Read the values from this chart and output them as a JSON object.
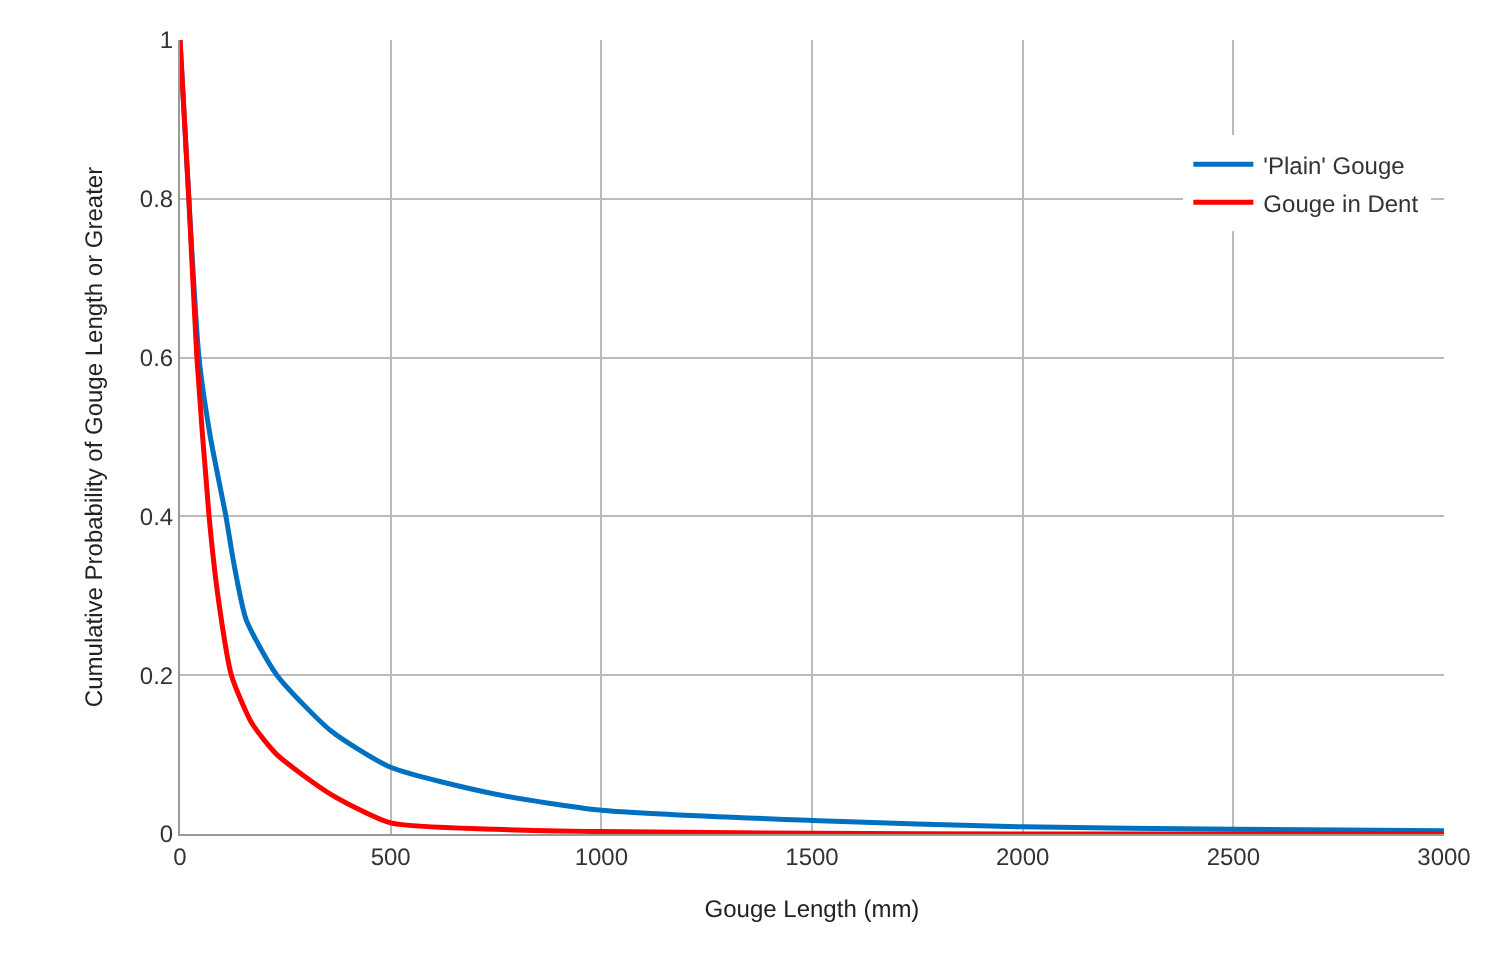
{
  "chart_data": {
    "type": "line",
    "xlabel": "Gouge Length (mm)",
    "ylabel": "Cumulative Probability of Gouge Length or Greater",
    "xlim": [
      0,
      3000
    ],
    "xticks": [
      0,
      500,
      1000,
      1500,
      2000,
      2500,
      3000
    ],
    "ylim": [
      0,
      1
    ],
    "yticks": [
      0,
      0.2,
      0.4,
      0.6,
      0.8,
      1
    ],
    "grid": true,
    "legend": "top right",
    "marker": "none",
    "line_style": "solid",
    "series": [
      {
        "name": "'Plain' Gouge",
        "color": "#0070c0",
        "x": [
          0,
          21,
          45,
          72,
          109,
          128,
          157,
          230,
          358,
          500,
          750,
          1000,
          1500,
          2000,
          2500,
          3000
        ],
        "values": [
          1,
          0.8,
          0.6,
          0.5,
          0.4,
          0.34,
          0.27,
          0.2,
          0.13,
          0.084,
          0.05,
          0.03,
          0.017,
          0.009,
          0.006,
          0.004
        ]
      },
      {
        "name": "Gouge in Dent",
        "color": "#ff0000",
        "x": [
          0,
          21,
          40,
          69,
          90,
          122,
          170,
          230,
          358,
          500,
          750,
          1000,
          1500,
          2000,
          2500,
          3000
        ],
        "values": [
          1,
          0.8,
          0.6,
          0.4,
          0.3,
          0.2,
          0.14,
          0.1,
          0.05,
          0.014,
          0.006,
          0.003,
          0.001,
          0,
          0,
          0
        ]
      }
    ]
  }
}
